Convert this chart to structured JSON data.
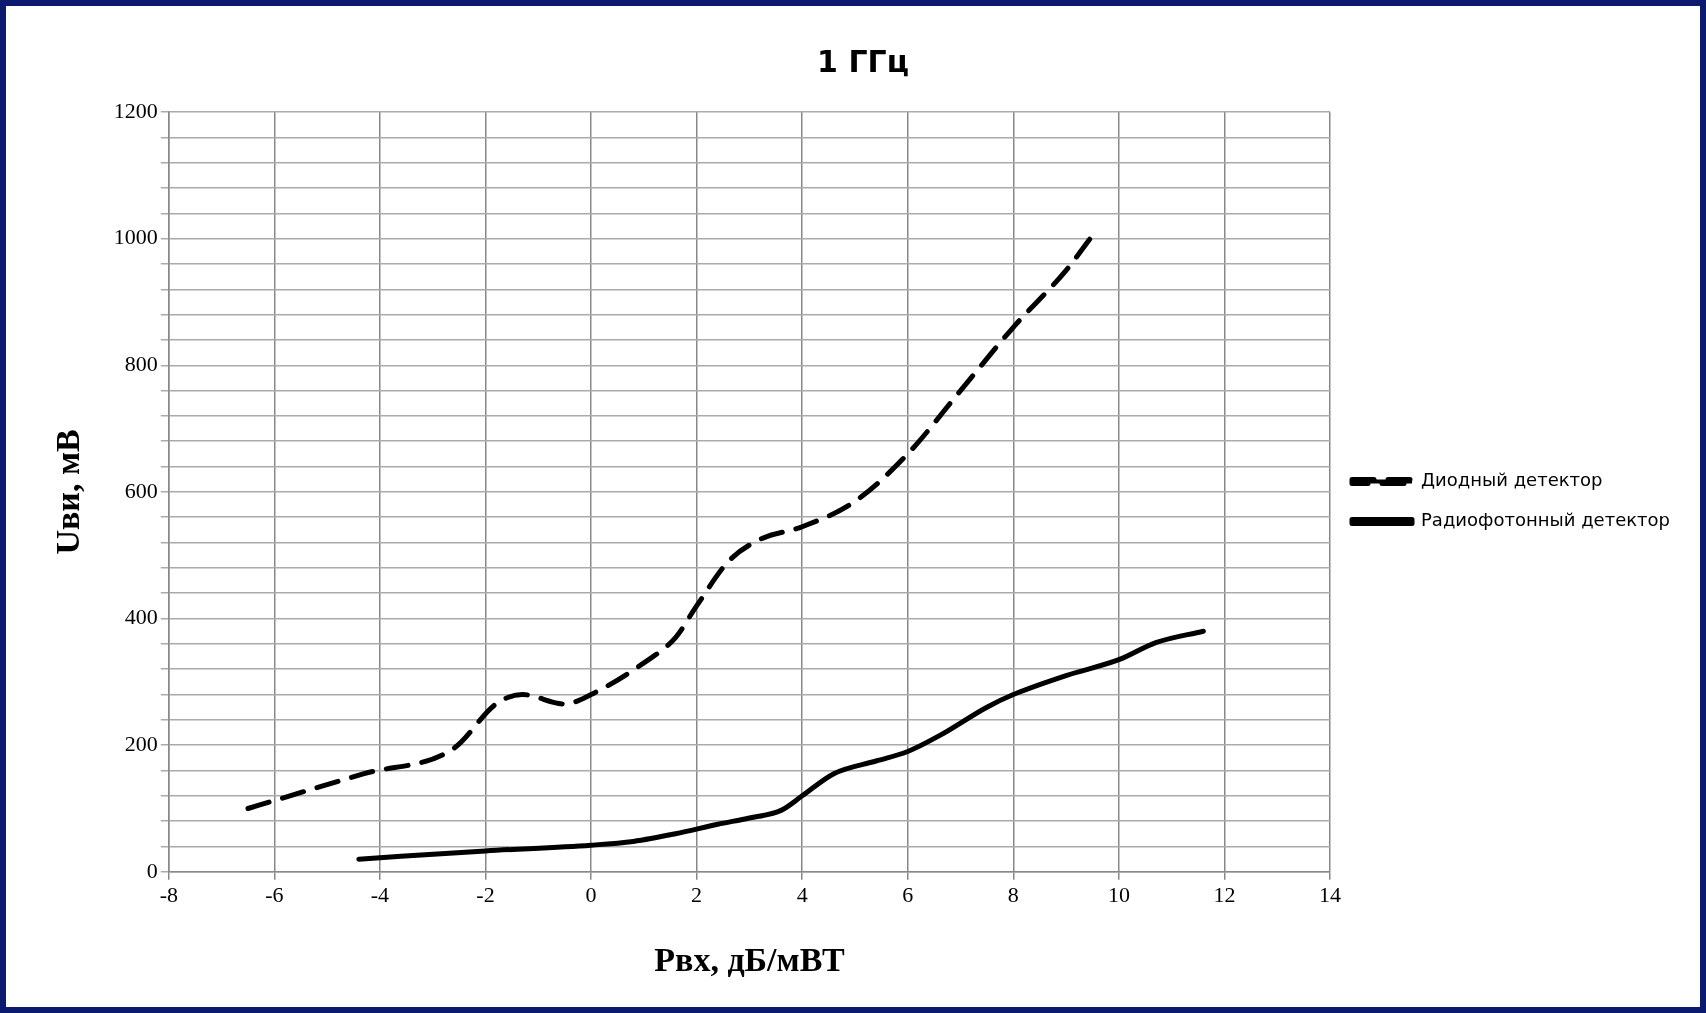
{
  "chart_data": {
    "type": "line",
    "title": "1 ГГц",
    "xlabel": "Pвх, дБ/мВТ",
    "ylabel": "Uви, мВ",
    "xlim": [
      -8,
      14
    ],
    "xticks": [
      -8,
      -6,
      -4,
      -2,
      0,
      2,
      4,
      6,
      8,
      10,
      12,
      14
    ],
    "ylim": [
      0,
      1200
    ],
    "yticks": [
      0,
      {
        "value": 40,
        "label": null
      },
      {
        "value": 80,
        "label": null
      },
      {
        "value": 120,
        "label": null
      },
      {
        "value": 160,
        "label": null
      },
      200,
      {
        "value": 240,
        "label": null
      },
      {
        "value": 280,
        "label": null
      },
      {
        "value": 320,
        "label": null
      },
      {
        "value": 360,
        "label": null
      },
      400,
      {
        "value": 440,
        "label": null
      },
      {
        "value": 480,
        "label": null
      },
      {
        "value": 520,
        "label": null
      },
      {
        "value": 560,
        "label": null
      },
      600,
      {
        "value": 640,
        "label": null
      },
      {
        "value": 680,
        "label": null
      },
      {
        "value": 720,
        "label": null
      },
      {
        "value": 760,
        "label": null
      },
      800,
      {
        "value": 840,
        "label": null
      },
      {
        "value": 880,
        "label": null
      },
      {
        "value": 920,
        "label": null
      },
      {
        "value": 960,
        "label": null
      },
      1000,
      {
        "value": 1040,
        "label": null
      },
      {
        "value": 1080,
        "label": null
      },
      {
        "value": 1120,
        "label": null
      },
      {
        "value": 1160,
        "label": null
      },
      1200
    ],
    "grid": true,
    "legend": "right",
    "marker": "none",
    "series": [
      {
        "name": "Диодный детектор",
        "color": "#000000",
        "line_style": "dashed",
        "x": [
          -6.5,
          -4.3,
          -2.6,
          -1.8,
          -1.3,
          -0.5,
          0,
          1,
          1.6,
          2,
          2.6,
          3.2,
          4,
          5,
          6,
          7,
          8,
          9,
          9.5
        ],
        "values": [
          100,
          155,
          195,
          265,
          280,
          265,
          280,
          330,
          370,
          420,
          490,
          525,
          545,
          585,
          660,
          760,
          860,
          950,
          1005
        ]
      },
      {
        "name": "Радиофотонный детектор",
        "color": "#000000",
        "line_style": "solid",
        "x": [
          -4.4,
          -2,
          0,
          0.8,
          1.6,
          2.4,
          3,
          3.6,
          4,
          4.6,
          5.4,
          6,
          6.6,
          7.5,
          8,
          9,
          10,
          10.7,
          11.6
        ],
        "values": [
          20,
          33,
          42,
          48,
          60,
          75,
          85,
          97,
          120,
          155,
          175,
          190,
          215,
          260,
          280,
          310,
          335,
          362,
          380
        ]
      }
    ]
  }
}
